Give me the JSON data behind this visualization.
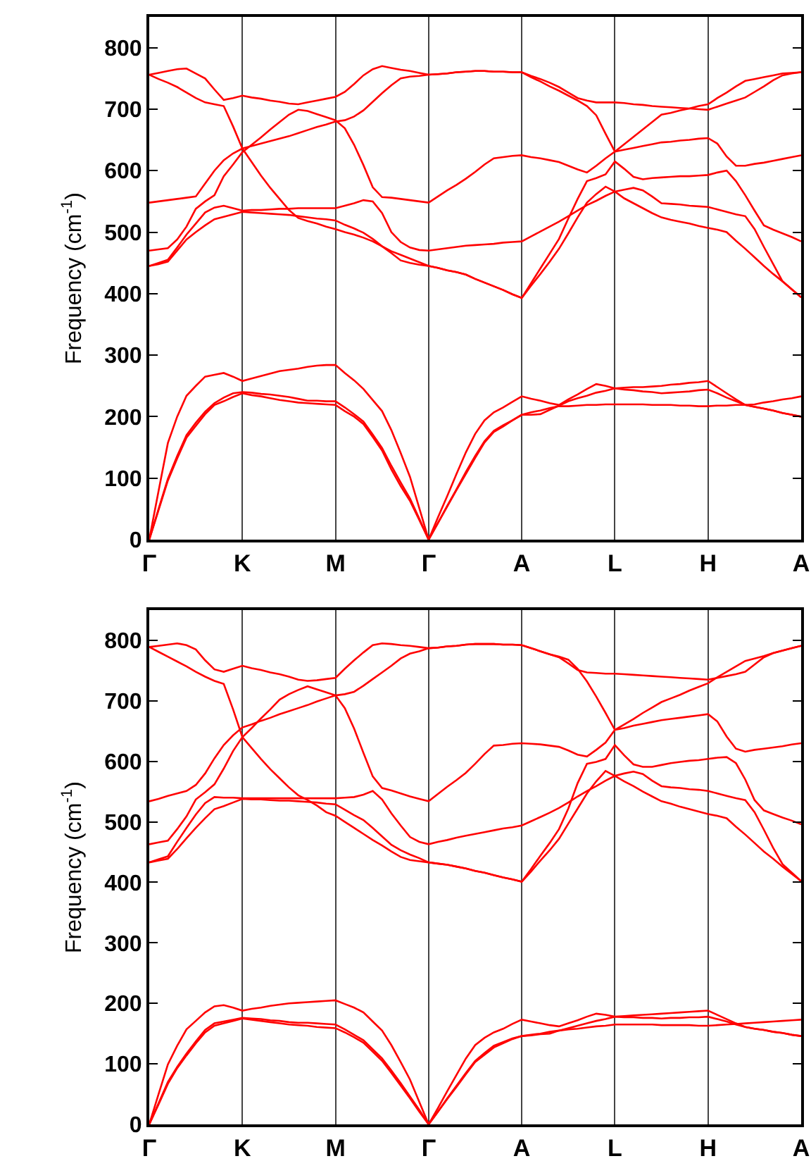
{
  "chart_data": [
    {
      "type": "line",
      "ylabel": "Frequency (cm$^{-1}$)",
      "ylim": [
        0,
        850
      ],
      "grid": "x",
      "categories": [
        "Γ",
        null,
        null,
        null,
        null,
        null,
        null,
        null,
        null,
        null,
        "K",
        null,
        null,
        null,
        null,
        null,
        null,
        null,
        null,
        null,
        "M",
        null,
        null,
        null,
        null,
        null,
        null,
        null,
        null,
        null,
        "Γ",
        null,
        null,
        null,
        null,
        null,
        null,
        null,
        null,
        null,
        "A",
        null,
        null,
        null,
        null,
        null,
        null,
        null,
        null,
        null,
        "L",
        null,
        null,
        null,
        null,
        null,
        null,
        null,
        null,
        null,
        "H",
        null,
        null,
        null,
        null,
        null,
        null,
        null,
        null,
        null,
        "A"
      ],
      "yticks": [
        0,
        100,
        200,
        300,
        400,
        500,
        600,
        700,
        800
      ],
      "series": [
        {
          "color": "#ff0000",
          "values": [
            756,
            759,
            762,
            765,
            766,
            758,
            750,
            732,
            715,
            718,
            722,
            719,
            717,
            714,
            712,
            709,
            708,
            711,
            714,
            717,
            720,
            728,
            741,
            755,
            765,
            770,
            767,
            764,
            762,
            759,
            756,
            757,
            758,
            760,
            761,
            762,
            762,
            761,
            761,
            760,
            760,
            754,
            749,
            743,
            736,
            727,
            718,
            714,
            711,
            711,
            711,
            710,
            708,
            707,
            705,
            704,
            703,
            702,
            701,
            700,
            699,
            704,
            709,
            714,
            719,
            728,
            737,
            747,
            755,
            758,
            760
          ]
        },
        {
          "color": "#ff0000",
          "values": [
            756,
            749,
            743,
            736,
            727,
            718,
            711,
            708,
            705,
            672,
            636,
            614,
            592,
            572,
            554,
            536,
            523,
            518,
            514,
            509,
            505,
            500,
            496,
            491,
            485,
            477,
            469,
            463,
            457,
            451,
            445,
            442,
            438,
            435,
            431,
            424,
            418,
            412,
            406,
            399,
            393,
            413,
            432,
            452,
            473,
            498,
            524,
            548,
            562,
            574,
            566,
            555,
            547,
            539,
            531,
            524,
            520,
            517,
            514,
            510,
            507,
            504,
            500,
            486,
            473,
            459,
            445,
            432,
            420,
            407,
            394
          ]
        },
        {
          "color": "#ff0000",
          "values": [
            548,
            550,
            552,
            554,
            556,
            558,
            579,
            600,
            617,
            628,
            636,
            640,
            644,
            648,
            652,
            656,
            661,
            666,
            671,
            675,
            680,
            682,
            688,
            698,
            712,
            726,
            739,
            750,
            753,
            754,
            756,
            757,
            758,
            760,
            761,
            762,
            762,
            761,
            761,
            760,
            760,
            752,
            745,
            737,
            730,
            722,
            714,
            705,
            690,
            660,
            631,
            643,
            655,
            667,
            679,
            691,
            694,
            698,
            701,
            705,
            708,
            718,
            727,
            737,
            746,
            749,
            752,
            755,
            758,
            759,
            760
          ]
        },
        {
          "color": "#ff0000",
          "values": [
            470,
            472,
            474,
            488,
            509,
            538,
            550,
            560,
            591,
            610,
            630,
            642,
            654,
            667,
            679,
            691,
            699,
            697,
            692,
            687,
            682,
            669,
            642,
            609,
            573,
            557,
            556,
            554,
            552,
            550,
            548,
            558,
            568,
            577,
            587,
            598,
            610,
            620,
            622,
            624,
            625,
            622,
            620,
            617,
            614,
            608,
            602,
            597,
            608,
            620,
            631,
            634,
            637,
            640,
            643,
            646,
            647,
            649,
            650,
            652,
            653,
            644,
            623,
            608,
            608,
            611,
            613,
            616,
            619,
            622,
            625
          ]
        },
        {
          "color": "#ff0000",
          "values": [
            445,
            450,
            455,
            475,
            496,
            514,
            532,
            540,
            543,
            539,
            535,
            536,
            536,
            537,
            538,
            538,
            539,
            539,
            539,
            539,
            539,
            543,
            547,
            552,
            550,
            531,
            500,
            484,
            475,
            471,
            470,
            472,
            474,
            476,
            478,
            479,
            480,
            481,
            483,
            484,
            485,
            493,
            501,
            509,
            517,
            526,
            535,
            544,
            551,
            559,
            566,
            569,
            572,
            568,
            558,
            547,
            546,
            545,
            543,
            542,
            541,
            537,
            533,
            529,
            526,
            505,
            476,
            448,
            420,
            407,
            394
          ]
        },
        {
          "color": "#ff0000",
          "values": [
            445,
            448,
            452,
            470,
            488,
            500,
            511,
            521,
            525,
            529,
            533,
            532,
            531,
            530,
            529,
            528,
            526,
            524,
            522,
            521,
            519,
            512,
            506,
            499,
            489,
            477,
            466,
            454,
            450,
            447,
            445,
            442,
            438,
            435,
            431,
            424,
            418,
            412,
            406,
            399,
            393,
            417,
            441,
            465,
            489,
            522,
            554,
            583,
            588,
            594,
            615,
            603,
            590,
            586,
            588,
            589,
            590,
            591,
            591,
            592,
            593,
            597,
            600,
            583,
            560,
            535,
            511,
            504,
            498,
            492,
            485
          ]
        },
        {
          "color": "#ff0000",
          "values": [
            0,
            79,
            157,
            200,
            234,
            250,
            265,
            268,
            271,
            265,
            258,
            262,
            266,
            270,
            274,
            276,
            278,
            281,
            283,
            284,
            284,
            271,
            259,
            245,
            227,
            209,
            178,
            141,
            102,
            51,
            0,
            36,
            71,
            107,
            142,
            172,
            194,
            207,
            215,
            224,
            233,
            229,
            226,
            222,
            219,
            228,
            236,
            245,
            253,
            250,
            246,
            244,
            243,
            241,
            240,
            238,
            239,
            240,
            241,
            243,
            244,
            238,
            231,
            225,
            219,
            216,
            213,
            210,
            206,
            203,
            200
          ]
        },
        {
          "color": "#ff0000",
          "values": [
            0,
            50,
            99,
            136,
            170,
            190,
            208,
            222,
            231,
            238,
            240,
            239,
            237,
            236,
            234,
            232,
            229,
            226,
            226,
            225,
            225,
            215,
            204,
            192,
            171,
            149,
            120,
            93,
            67,
            34,
            0,
            27,
            55,
            82,
            110,
            136,
            160,
            177,
            186,
            194,
            203,
            203,
            204,
            211,
            218,
            225,
            230,
            234,
            239,
            242,
            246,
            247,
            248,
            248,
            249,
            250,
            252,
            253,
            255,
            256,
            258,
            248,
            238,
            228,
            219,
            216,
            213,
            210,
            206,
            203,
            200
          ]
        },
        {
          "color": "#ff0000",
          "values": [
            0,
            48,
            96,
            132,
            166,
            185,
            204,
            219,
            225,
            232,
            238,
            235,
            233,
            230,
            227,
            225,
            223,
            222,
            221,
            220,
            219,
            209,
            200,
            188,
            167,
            145,
            114,
            87,
            63,
            32,
            0,
            27,
            54,
            81,
            107,
            133,
            158,
            175,
            184,
            194,
            203,
            207,
            210,
            214,
            217,
            217,
            218,
            219,
            219,
            220,
            220,
            220,
            220,
            220,
            219,
            219,
            219,
            218,
            218,
            217,
            217,
            218,
            218,
            219,
            219,
            220,
            223,
            225,
            228,
            230,
            233
          ]
        }
      ]
    },
    {
      "type": "line",
      "ylabel": "Frequency (cm$^{-1}$)",
      "ylim": [
        0,
        850
      ],
      "grid": "x",
      "categories": [
        "Γ",
        null,
        null,
        null,
        null,
        null,
        null,
        null,
        null,
        null,
        "K",
        null,
        null,
        null,
        null,
        null,
        null,
        null,
        null,
        null,
        "M",
        null,
        null,
        null,
        null,
        null,
        null,
        null,
        null,
        null,
        "Γ",
        null,
        null,
        null,
        null,
        null,
        null,
        null,
        null,
        null,
        "A",
        null,
        null,
        null,
        null,
        null,
        null,
        null,
        null,
        null,
        "L",
        null,
        null,
        null,
        null,
        null,
        null,
        null,
        null,
        null,
        "H",
        null,
        null,
        null,
        null,
        null,
        null,
        null,
        null,
        null,
        "A"
      ],
      "yticks": [
        0,
        100,
        200,
        300,
        400,
        500,
        600,
        700,
        800
      ],
      "series": [
        {
          "color": "#ff0000",
          "values": [
            789,
            791,
            793,
            795,
            792,
            785,
            767,
            752,
            748,
            753,
            758,
            754,
            751,
            747,
            744,
            740,
            735,
            733,
            734,
            736,
            738,
            753,
            767,
            780,
            792,
            795,
            794,
            792,
            791,
            789,
            787,
            788,
            790,
            791,
            793,
            794,
            794,
            794,
            793,
            793,
            792,
            787,
            782,
            777,
            772,
            762,
            751,
            747,
            746,
            745,
            745,
            744,
            743,
            742,
            741,
            740,
            739,
            738,
            737,
            736,
            735,
            738,
            741,
            744,
            748,
            760,
            772,
            779,
            783,
            787,
            791
          ]
        },
        {
          "color": "#ff0000",
          "values": [
            789,
            781,
            773,
            765,
            757,
            748,
            740,
            733,
            728,
            686,
            640,
            622,
            604,
            587,
            572,
            557,
            544,
            536,
            527,
            516,
            510,
            500,
            490,
            480,
            470,
            461,
            451,
            442,
            437,
            435,
            433,
            431,
            429,
            426,
            423,
            419,
            416,
            412,
            408,
            405,
            401,
            418,
            436,
            453,
            472,
            497,
            522,
            547,
            567,
            584,
            576,
            567,
            559,
            550,
            542,
            534,
            530,
            525,
            521,
            517,
            513,
            510,
            506,
            492,
            479,
            465,
            451,
            439,
            426,
            414,
            402
          ]
        },
        {
          "color": "#ff0000",
          "values": [
            534,
            538,
            543,
            547,
            551,
            561,
            580,
            605,
            627,
            643,
            656,
            661,
            667,
            672,
            678,
            683,
            688,
            693,
            699,
            704,
            709,
            711,
            715,
            725,
            736,
            747,
            758,
            770,
            778,
            782,
            787,
            788,
            790,
            791,
            793,
            794,
            794,
            794,
            793,
            793,
            792,
            787,
            782,
            777,
            773,
            768,
            753,
            732,
            707,
            680,
            652,
            661,
            670,
            680,
            689,
            698,
            704,
            710,
            717,
            723,
            729,
            739,
            748,
            757,
            766,
            770,
            774,
            779,
            783,
            787,
            791
          ]
        },
        {
          "color": "#ff0000",
          "values": [
            463,
            466,
            469,
            488,
            509,
            537,
            549,
            562,
            588,
            617,
            640,
            655,
            671,
            686,
            702,
            711,
            718,
            724,
            719,
            714,
            709,
            688,
            654,
            614,
            575,
            556,
            552,
            547,
            542,
            538,
            534,
            546,
            558,
            569,
            581,
            596,
            612,
            626,
            627,
            629,
            630,
            629,
            628,
            626,
            624,
            618,
            611,
            608,
            619,
            631,
            652,
            655,
            659,
            662,
            665,
            668,
            670,
            672,
            674,
            676,
            678,
            666,
            641,
            621,
            616,
            619,
            621,
            623,
            625,
            628,
            630
          ]
        },
        {
          "color": "#ff0000",
          "values": [
            433,
            438,
            443,
            467,
            490,
            512,
            531,
            541,
            540,
            540,
            539,
            539,
            539,
            539,
            539,
            539,
            539,
            539,
            539,
            539,
            539,
            540,
            541,
            545,
            551,
            537,
            514,
            494,
            475,
            467,
            463,
            467,
            470,
            474,
            477,
            480,
            483,
            486,
            489,
            491,
            494,
            501,
            508,
            515,
            523,
            532,
            542,
            551,
            559,
            568,
            576,
            580,
            583,
            579,
            568,
            559,
            557,
            556,
            554,
            553,
            551,
            547,
            543,
            539,
            536,
            516,
            487,
            457,
            430,
            416,
            402
          ]
        },
        {
          "color": "#ff0000",
          "values": [
            433,
            436,
            439,
            455,
            473,
            490,
            506,
            521,
            526,
            532,
            538,
            537,
            537,
            536,
            535,
            535,
            534,
            533,
            532,
            530,
            529,
            520,
            511,
            503,
            490,
            476,
            462,
            453,
            446,
            440,
            433,
            431,
            429,
            426,
            423,
            419,
            416,
            412,
            408,
            405,
            401,
            422,
            444,
            465,
            488,
            522,
            564,
            596,
            599,
            604,
            627,
            610,
            595,
            591,
            591,
            594,
            597,
            599,
            601,
            602,
            604,
            606,
            607,
            597,
            570,
            536,
            519,
            513,
            507,
            502,
            496
          ]
        },
        {
          "color": "#ff0000",
          "values": [
            0,
            50,
            99,
            130,
            157,
            171,
            185,
            195,
            197,
            193,
            188,
            191,
            193,
            196,
            198,
            200,
            201,
            202,
            203,
            204,
            205,
            199,
            193,
            185,
            170,
            155,
            131,
            103,
            74,
            37,
            0,
            27,
            55,
            82,
            109,
            131,
            143,
            152,
            158,
            166,
            173,
            170,
            167,
            164,
            162,
            167,
            172,
            178,
            183,
            181,
            178,
            177,
            177,
            176,
            176,
            175,
            176,
            176,
            177,
            177,
            178,
            174,
            170,
            165,
            161,
            158,
            156,
            153,
            151,
            148,
            146
          ]
        },
        {
          "color": "#ff0000",
          "values": [
            0,
            35,
            70,
            95,
            117,
            137,
            156,
            167,
            170,
            173,
            176,
            175,
            174,
            172,
            171,
            169,
            168,
            168,
            167,
            166,
            165,
            157,
            148,
            139,
            124,
            109,
            89,
            68,
            46,
            24,
            0,
            21,
            43,
            64,
            85,
            105,
            118,
            130,
            136,
            142,
            146,
            147,
            149,
            150,
            155,
            159,
            163,
            167,
            171,
            174,
            178,
            179,
            180,
            181,
            182,
            183,
            184,
            185,
            186,
            187,
            188,
            181,
            174,
            167,
            161,
            158,
            156,
            153,
            151,
            148,
            146
          ]
        },
        {
          "color": "#ff0000",
          "values": [
            0,
            33,
            67,
            93,
            114,
            134,
            152,
            163,
            167,
            171,
            175,
            173,
            171,
            169,
            167,
            165,
            164,
            163,
            161,
            160,
            159,
            152,
            144,
            135,
            120,
            105,
            85,
            64,
            43,
            21,
            0,
            21,
            42,
            62,
            83,
            103,
            115,
            127,
            134,
            141,
            146,
            148,
            150,
            153,
            155,
            157,
            158,
            160,
            162,
            163,
            165,
            165,
            165,
            165,
            165,
            164,
            164,
            164,
            164,
            163,
            163,
            164,
            165,
            166,
            167,
            168,
            169,
            170,
            171,
            172,
            173
          ]
        }
      ]
    }
  ]
}
